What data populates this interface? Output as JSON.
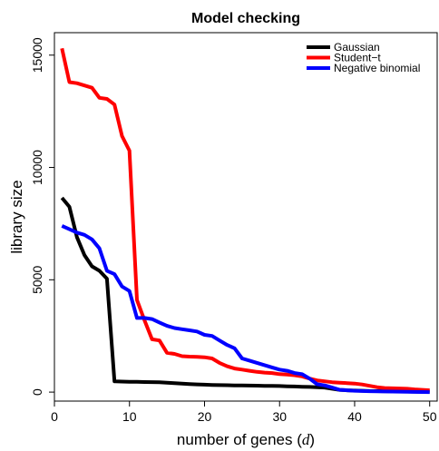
{
  "chart_data": {
    "type": "line",
    "title": "Model checking",
    "xlabel_prefix": "number of genes (",
    "xlabel_var": "d",
    "xlabel_suffix": ")",
    "ylabel": "library size",
    "xlim": [
      0,
      51
    ],
    "ylim": [
      -400,
      16000
    ],
    "xticks": [
      0,
      10,
      20,
      30,
      40,
      50
    ],
    "yticks": [
      0,
      5000,
      10000,
      15000
    ],
    "grid": false,
    "legend_position": "top-right",
    "x": [
      1,
      2,
      3,
      4,
      5,
      6,
      7,
      8,
      9,
      10,
      11,
      12,
      13,
      14,
      15,
      16,
      17,
      18,
      19,
      20,
      21,
      22,
      23,
      24,
      25,
      26,
      27,
      28,
      29,
      30,
      31,
      32,
      33,
      34,
      35,
      36,
      37,
      38,
      39,
      40,
      41,
      42,
      43,
      44,
      45,
      46,
      47,
      48,
      49,
      50
    ],
    "series": [
      {
        "name": "Gaussian",
        "color": "#000000",
        "values": [
          8650,
          8250,
          6900,
          6100,
          5600,
          5400,
          5050,
          480,
          470,
          460,
          455,
          450,
          445,
          440,
          420,
          400,
          380,
          360,
          345,
          330,
          320,
          310,
          305,
          300,
          295,
          290,
          285,
          280,
          275,
          270,
          260,
          250,
          240,
          230,
          220,
          200,
          150,
          100,
          80,
          70,
          60,
          50,
          45,
          40,
          35,
          30,
          25,
          20,
          15,
          10
        ]
      },
      {
        "name": "Student−t",
        "color": "#ff0000",
        "values": [
          15300,
          13800,
          13750,
          13650,
          13550,
          13100,
          13050,
          12800,
          11400,
          10750,
          4100,
          3200,
          2350,
          2300,
          1750,
          1700,
          1600,
          1580,
          1570,
          1550,
          1500,
          1300,
          1150,
          1050,
          1000,
          950,
          900,
          870,
          850,
          800,
          780,
          750,
          700,
          600,
          520,
          480,
          440,
          420,
          400,
          380,
          340,
          280,
          220,
          180,
          170,
          160,
          150,
          120,
          100,
          80
        ]
      },
      {
        "name": "Negative binomial",
        "color": "#0000ff",
        "values": [
          7400,
          7250,
          7100,
          7000,
          6800,
          6400,
          5400,
          5250,
          4700,
          4500,
          3300,
          3300,
          3250,
          3100,
          2950,
          2850,
          2800,
          2750,
          2700,
          2550,
          2500,
          2300,
          2100,
          1950,
          1500,
          1400,
          1300,
          1200,
          1100,
          1000,
          950,
          850,
          800,
          600,
          350,
          300,
          200,
          100,
          80,
          60,
          50,
          40,
          35,
          30,
          25,
          20,
          15,
          10,
          5,
          0
        ]
      }
    ]
  }
}
